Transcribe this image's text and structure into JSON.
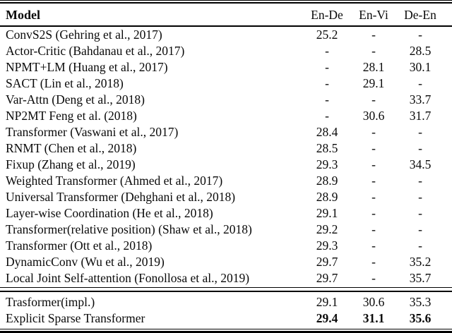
{
  "table": {
    "header": {
      "model_label": "Model",
      "columns": [
        "En-De",
        "En-Vi",
        "De-En"
      ]
    },
    "rows": [
      {
        "model": "ConvS2S (Gehring et al., 2017)",
        "en_de": "25.2",
        "en_vi": "-",
        "de_en": "-"
      },
      {
        "model": "Actor-Critic (Bahdanau et al., 2017)",
        "en_de": "-",
        "en_vi": "-",
        "de_en": "28.5"
      },
      {
        "model": "NPMT+LM (Huang et al., 2017)",
        "en_de": "-",
        "en_vi": "28.1",
        "de_en": "30.1"
      },
      {
        "model": "SACT (Lin et al., 2018)",
        "en_de": "-",
        "en_vi": "29.1",
        "de_en": "-"
      },
      {
        "model": "Var-Attn (Deng et al., 2018)",
        "en_de": "-",
        "en_vi": "-",
        "de_en": "33.7"
      },
      {
        "model": "NP2MT Feng et al. (2018)",
        "en_de": "-",
        "en_vi": "30.6",
        "de_en": "31.7"
      },
      {
        "model": "Transformer (Vaswani et al., 2017)",
        "en_de": "28.4",
        "en_vi": "-",
        "de_en": "-"
      },
      {
        "model": "RNMT (Chen et al., 2018)",
        "en_de": "28.5",
        "en_vi": "-",
        "de_en": "-"
      },
      {
        "model": "Fixup (Zhang et al., 2019)",
        "en_de": "29.3",
        "en_vi": "-",
        "de_en": "34.5"
      },
      {
        "model": "Weighted Transformer (Ahmed et al., 2017)",
        "en_de": "28.9",
        "en_vi": "-",
        "de_en": "-"
      },
      {
        "model": "Universal Transformer (Dehghani et al., 2018)",
        "en_de": "28.9",
        "en_vi": "-",
        "de_en": "-"
      },
      {
        "model": "Layer-wise Coordination (He et al., 2018)",
        "en_de": "29.1",
        "en_vi": "-",
        "de_en": "-"
      },
      {
        "model": "Transformer(relative position) (Shaw et al., 2018)",
        "en_de": "29.2",
        "en_vi": "-",
        "de_en": "-"
      },
      {
        "model": "Transformer (Ott et al., 2018)",
        "en_de": "29.3",
        "en_vi": "-",
        "de_en": "-"
      },
      {
        "model": "DynamicConv (Wu et al., 2019)",
        "en_de": "29.7",
        "en_vi": "-",
        "de_en": "35.2"
      },
      {
        "model": "Local Joint Self-attention (Fonollosa et al., 2019)",
        "en_de": "29.7",
        "en_vi": "-",
        "de_en": "35.7"
      }
    ],
    "footer_rows": [
      {
        "model": "Trasformer(impl.)",
        "en_de": "29.1",
        "en_vi": "30.6",
        "de_en": "35.3",
        "bold_values": false
      },
      {
        "model": "Explicit Sparse Transformer",
        "en_de": "29.4",
        "en_vi": "31.1",
        "de_en": "35.6",
        "bold_values": true
      }
    ]
  }
}
